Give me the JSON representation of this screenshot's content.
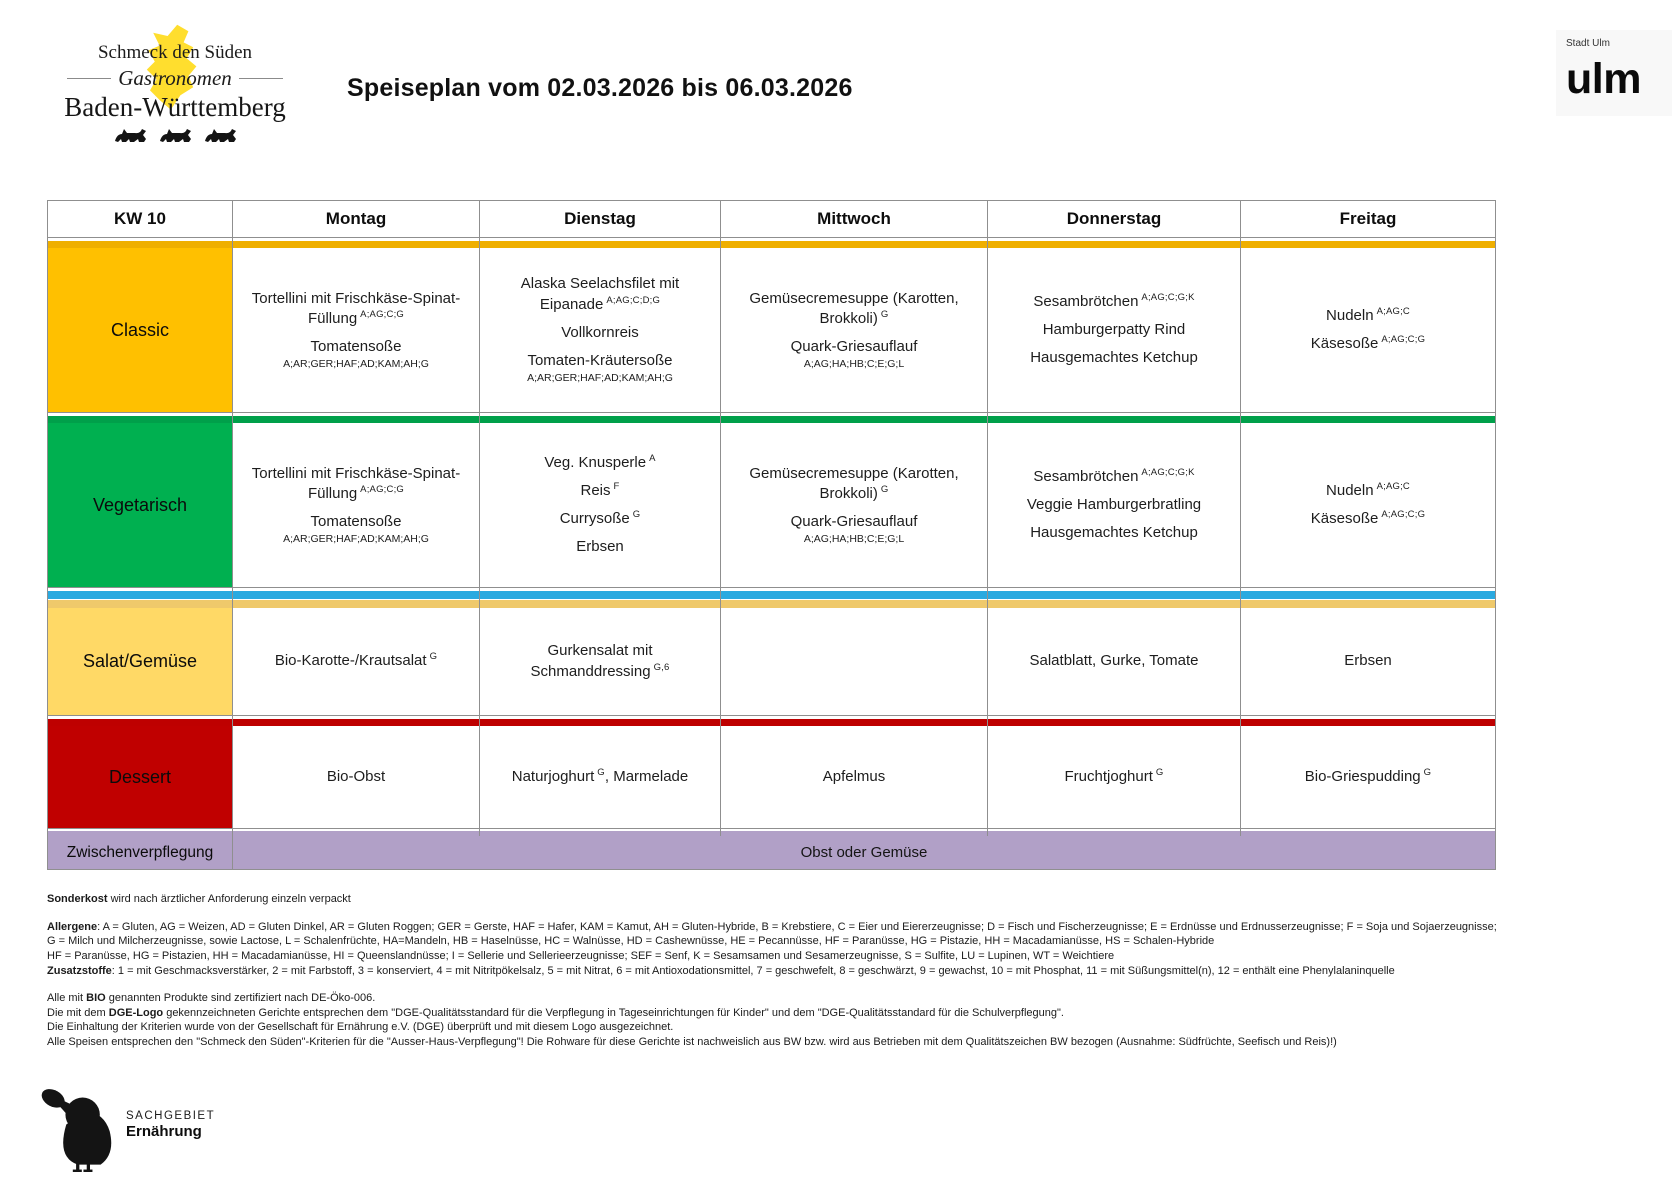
{
  "header": {
    "title": "Speiseplan vom 02.03.2026 bis 06.03.2026",
    "brand": {
      "line1": "Schmeck den Süden",
      "line2": "Gastronomen",
      "line3": "Baden-Württemberg",
      "map_color": "#FFDE2E"
    },
    "city": {
      "small": "Stadt Ulm",
      "large": "ulm"
    }
  },
  "table": {
    "corner": "KW 10",
    "days": [
      "Montag",
      "Dienstag",
      "Mittwoch",
      "Donnerstag",
      "Freitag"
    ],
    "border_color": "#8f8f8f",
    "categories": [
      {
        "label": "Classic",
        "cell_color": "#FFC000",
        "bars": [
          "#EFAF00"
        ],
        "cells": [
          [
            {
              "text": "Tortellini mit Frischkäse-Spinat-Füllung",
              "sup": "A;AG;C;G"
            },
            {
              "text": "Tomatensoße",
              "sub": "A;AR;GER;HAF;AD;KAM;AH;G"
            }
          ],
          [
            {
              "text": "Alaska Seelachsfilet mit Eipanade",
              "sup": "A;AG;C;D;G"
            },
            {
              "text": "Vollkornreis"
            },
            {
              "text": "Tomaten-Kräutersoße",
              "sub": "A;AR;GER;HAF;AD;KAM;AH;G"
            }
          ],
          [
            {
              "text": "Gemüsecremesuppe (Karotten, Brokkoli)",
              "sup": "G"
            },
            {
              "text": "Quark-Griesauflauf",
              "sub": "A;AG;HA;HB;C;E;G;L"
            }
          ],
          [
            {
              "text": "Sesambrötchen",
              "sup": "A;AG;C;G;K"
            },
            {
              "text": "Hamburgerpatty Rind"
            },
            {
              "text": "Hausgemachtes Ketchup"
            }
          ],
          [
            {
              "text": "Nudeln",
              "sup": "A;AG;C"
            },
            {
              "text": "Käsesoße",
              "sup": "A;AG;C;G"
            }
          ]
        ]
      },
      {
        "label": "Vegetarisch",
        "cell_color": "#00B050",
        "bars": [
          "#00A04A"
        ],
        "cells": [
          [
            {
              "text": "Tortellini mit Frischkäse-Spinat-Füllung",
              "sup": "A;AG;C;G"
            },
            {
              "text": "Tomatensoße",
              "sub": "A;AR;GER;HAF;AD;KAM;AH;G"
            }
          ],
          [
            {
              "text": "Veg. Knusperle",
              "sup": "A"
            },
            {
              "text": "Reis",
              "sup": "F"
            },
            {
              "text": "Currysoße",
              "sup": "G"
            },
            {
              "text": "Erbsen"
            }
          ],
          [
            {
              "text": "Gemüsecremesuppe (Karotten, Brokkoli)",
              "sup": "G"
            },
            {
              "text": "Quark-Griesauflauf",
              "sub": "A;AG;HA;HB;C;E;G;L"
            }
          ],
          [
            {
              "text": "Sesambrötchen",
              "sup": "A;AG;C;G;K"
            },
            {
              "text": "Veggie Hamburgerbratling"
            },
            {
              "text": "Hausgemachtes Ketchup"
            }
          ],
          [
            {
              "text": "Nudeln",
              "sup": "A;AG;C"
            },
            {
              "text": "Käsesoße",
              "sup": "A;AG;C;G"
            }
          ]
        ]
      },
      {
        "label": "Salat/Gemüse",
        "cell_color": "#FFD966",
        "bars": [
          "#29A9E0",
          "#EFC96B"
        ],
        "cells": [
          [
            {
              "text": "Bio-Karotte-/Krautsalat",
              "sup": "G"
            }
          ],
          [
            {
              "text": "Gurkensalat mit Schmanddressing",
              "sup": "G,6"
            }
          ],
          [],
          [
            {
              "text": "Salatblatt, Gurke, Tomate"
            }
          ],
          [
            {
              "text": "Erbsen"
            }
          ]
        ]
      },
      {
        "label": "Dessert",
        "cell_color": "#C00000",
        "bars": [
          "#BE0000"
        ],
        "cells": [
          [
            {
              "text": "Bio-Obst"
            }
          ],
          [
            {
              "text": "Naturjoghurt",
              "sup": "G",
              "text2": ", Marmelade"
            }
          ],
          [
            {
              "text": "Apfelmus"
            }
          ],
          [
            {
              "text": "Fruchtjoghurt",
              "sup": "G"
            }
          ],
          [
            {
              "text": "Bio-Griespudding",
              "sup": "G"
            }
          ]
        ]
      }
    ],
    "snack": {
      "label": "Zwischenverpflegung",
      "value": "Obst oder Gemüse",
      "color": "#B1A0C7",
      "bars": [
        "#B1A0C7"
      ]
    }
  },
  "footer": {
    "lines": [
      {
        "pre": "",
        "bold": "Sonderkost",
        "post": " wird nach ärztlicher Anforderung einzeln verpackt"
      },
      {
        "pre": "",
        "bold": "Allergene",
        "post": ": A = Gluten, AG = Weizen, AD = Gluten Dinkel, AR = Gluten Roggen; GER = Gerste, HAF = Hafer, KAM = Kamut, AH = Gluten-Hybride, B = Krebstiere, C = Eier und Eiererzeugnisse; D = Fisch und Fischerzeugnisse; E = Erdnüsse und Erdnusserzeugnisse; F = Soja und Sojaerzeugnisse; G = Milch und Milcherzeugnisse, sowie Lactose, L = Schalenfrüchte, HA=Mandeln, HB = Haselnüsse, HC = Walnüsse, HD = Cashewnüsse, HE = Pecannüsse, HF = Paranüsse, HG = Pistazie, HH = Macadamianüsse, HS = Schalen-Hybride"
      },
      {
        "pre": "",
        "bold": "",
        "post": "HF = Paranüsse, HG = Pistazien, HH = Macadamianüsse, HI = Queenslandnüsse; I = Sellerie und Sellerieerzeugnisse; SEF = Senf, K = Sesamsamen und Sesamerzeugnisse, S = Sulfite, LU = Lupinen, WT = Weichtiere"
      },
      {
        "pre": "",
        "bold": "Zusatzstoffe",
        "post": ": 1 = mit Geschmacksverstärker, 2 = mit Farbstoff, 3 = konserviert, 4 = mit Nitritpökelsalz, 5 = mit Nitrat, 6 = mit Antioxodationsmittel, 7 = geschwefelt, 8 = geschwärzt, 9 = gewachst, 10 = mit Phosphat, 11 = mit Süßungsmittel(n), 12 = enthält eine Phenylalaninquelle"
      },
      {
        "pre": "Alle mit ",
        "bold": "BIO",
        "post": " genannten Produkte sind zertifiziert nach DE-Öko-006."
      },
      {
        "pre": "Die mit dem ",
        "bold": "DGE-Logo",
        "post": " gekennzeichneten Gerichte entsprechen dem \"DGE-Qualitätsstandard für die Verpflegung in Tageseinrichtungen für Kinder\" und dem \"DGE-Qualitätsstandard für die Schulverpflegung\"."
      },
      {
        "pre": "",
        "bold": "",
        "post": "Die Einhaltung der Kriterien wurde von der Gesellschaft für Ernährung e.V. (DGE) überprüft und mit diesem Logo ausgezeichnet."
      },
      {
        "pre": "",
        "bold": "",
        "post": "Alle Speisen entsprechen den \"Schmeck den Süden\"-Kriterien für die \"Ausser-Haus-Verpflegung\"! Die Rohware für diese Gerichte ist nachweislich aus BW bzw. wird aus Betrieben mit dem Qualitätszeichen BW bezogen (Ausnahme: Südfrüchte, Seefisch und Reis)!)"
      }
    ]
  },
  "dept_logo": {
    "line1": "SACHGEBIET",
    "line2": "Ernährung"
  }
}
